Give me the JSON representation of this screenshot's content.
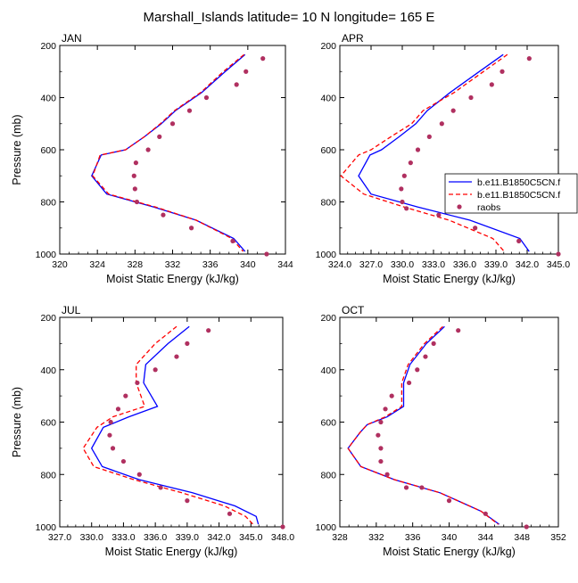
{
  "figure": {
    "title": "Marshall_Islands  latitude= 10 N longitude= 165 E"
  },
  "legend": {
    "entries": [
      {
        "label": "b.e11.B1850C5CN.f",
        "color": "#0000ff",
        "style": "solid"
      },
      {
        "label": "b.e11.B1850C5CN.f",
        "color": "#ff0000",
        "style": "dashed"
      },
      {
        "label": "raobs",
        "color": "#b03060",
        "style": "marker"
      }
    ]
  },
  "chart_data": [
    {
      "type": "line",
      "name": "JAN",
      "title": "JAN",
      "xlabel": "Moist Static Energy (kJ/kg)",
      "ylabel": "Pressure (mb)",
      "xlim": [
        320,
        344
      ],
      "ylim": [
        1000,
        200
      ],
      "y_reversed": true,
      "xticks": [
        "320",
        "324",
        "328",
        "332",
        "336",
        "340",
        "344"
      ],
      "yticks": [
        "200",
        "400",
        "600",
        "800",
        "1000"
      ],
      "series": [
        {
          "name": "b.e11.B1850C5CN.f (solid)",
          "color": "#0000ff",
          "dash": false,
          "x": [
            339.7,
            337.6,
            335.1,
            332.3,
            330.8,
            329.0,
            327.0,
            324.4,
            323.4,
            325.0,
            330.0,
            334.5,
            338.5,
            339.7
          ],
          "y": [
            235,
            300,
            380,
            450,
            500,
            550,
            600,
            620,
            700,
            770,
            820,
            870,
            940,
            990
          ]
        },
        {
          "name": "b.e11.B1850C5CN.f (dashed)",
          "color": "#ff0000",
          "dash": true,
          "x": [
            339.6,
            337.4,
            335.0,
            332.2,
            330.7,
            329.0,
            327.0,
            324.3,
            323.5,
            325.2,
            330.2,
            334.5,
            338.3,
            339.5
          ],
          "y": [
            235,
            300,
            380,
            450,
            500,
            550,
            600,
            620,
            700,
            770,
            820,
            870,
            940,
            990
          ]
        },
        {
          "name": "raobs",
          "color": "#b03060",
          "marker": true,
          "x": [
            341.6,
            339.8,
            338.8,
            335.6,
            333.8,
            332.0,
            330.6,
            329.4,
            328.1,
            327.9,
            328.0,
            328.2,
            331.0,
            334.0,
            338.4,
            342.0
          ],
          "y": [
            250,
            300,
            350,
            400,
            450,
            500,
            550,
            600,
            650,
            700,
            750,
            800,
            850,
            900,
            950,
            1000
          ]
        }
      ]
    },
    {
      "type": "line",
      "name": "APR",
      "title": "APR",
      "xlabel": "Moist Static Energy (kJ/kg)",
      "ylabel": "",
      "xlim": [
        324,
        345
      ],
      "ylim": [
        1000,
        200
      ],
      "y_reversed": true,
      "xticks": [
        "324.0",
        "327.0",
        "330.0",
        "333.0",
        "336.0",
        "339.0",
        "342.0",
        "345.0"
      ],
      "yticks": [
        "200",
        "400",
        "600",
        "800",
        "1000"
      ],
      "series": [
        {
          "name": "b.e11.B1850C5CN.f (solid)",
          "color": "#0000ff",
          "dash": false,
          "x": [
            339.7,
            337.4,
            334.6,
            332.4,
            331.3,
            329.7,
            328.0,
            326.9,
            325.8,
            327.0,
            331.5,
            336.5,
            341.3,
            342.2
          ],
          "y": [
            235,
            300,
            380,
            450,
            500,
            550,
            600,
            620,
            700,
            770,
            820,
            870,
            940,
            990
          ]
        },
        {
          "name": "b.e11.B1850C5CN.f (dashed)",
          "color": "#ff0000",
          "dash": true,
          "x": [
            340.1,
            337.8,
            335.0,
            332.0,
            330.9,
            328.9,
            327.0,
            325.8,
            324.1,
            326.3,
            330.2,
            334.5,
            338.7,
            339.8
          ],
          "y": [
            235,
            300,
            380,
            450,
            500,
            550,
            600,
            620,
            700,
            770,
            820,
            870,
            940,
            990
          ]
        },
        {
          "name": "raobs",
          "color": "#b03060",
          "marker": true,
          "x": [
            342.2,
            339.6,
            338.6,
            336.6,
            334.9,
            333.8,
            332.6,
            331.5,
            330.8,
            330.2,
            329.9,
            330.0,
            330.4,
            333.5,
            337.0,
            341.2,
            345.0
          ],
          "y": [
            250,
            300,
            350,
            400,
            450,
            500,
            550,
            600,
            650,
            700,
            750,
            800,
            825,
            850,
            900,
            950,
            1000
          ]
        }
      ]
    },
    {
      "type": "line",
      "name": "JUL",
      "title": "JUL",
      "xlabel": "Moist Static Energy (kJ/kg)",
      "ylabel": "Pressure (mb)",
      "xlim": [
        327,
        348
      ],
      "ylim": [
        1000,
        200
      ],
      "y_reversed": true,
      "xticks": [
        "327.0",
        "330.0",
        "333.0",
        "336.0",
        "339.0",
        "342.0",
        "345.0",
        "348.0"
      ],
      "yticks": [
        "200",
        "400",
        "600",
        "800",
        "1000"
      ],
      "series": [
        {
          "name": "b.e11.B1850C5CN.f (solid)",
          "color": "#0000ff",
          "dash": false,
          "x": [
            339.2,
            337.2,
            335.1,
            334.9,
            336.2,
            333.5,
            331.1,
            330.0,
            331.0,
            334.5,
            339.5,
            343.5,
            345.5,
            345.7
          ],
          "y": [
            235,
            300,
            380,
            450,
            540,
            580,
            620,
            700,
            770,
            820,
            870,
            920,
            960,
            990
          ]
        },
        {
          "name": "b.e11.B1850C5CN.f (dashed)",
          "color": "#ff0000",
          "dash": true,
          "x": [
            338.0,
            336.0,
            334.2,
            334.2,
            335.0,
            332.0,
            330.5,
            329.2,
            330.2,
            334.0,
            338.5,
            342.5,
            344.5,
            345.2
          ],
          "y": [
            235,
            300,
            380,
            450,
            540,
            580,
            620,
            700,
            770,
            820,
            870,
            920,
            960,
            990
          ]
        },
        {
          "name": "raobs",
          "color": "#b03060",
          "marker": true,
          "x": [
            341.0,
            339.0,
            338.0,
            336.0,
            334.3,
            333.2,
            332.5,
            331.8,
            331.7,
            332.0,
            333.0,
            334.5,
            336.5,
            339.0,
            343.0,
            348.0
          ],
          "y": [
            250,
            300,
            350,
            400,
            450,
            500,
            550,
            600,
            650,
            700,
            750,
            800,
            850,
            900,
            950,
            1000
          ]
        }
      ]
    },
    {
      "type": "line",
      "name": "OCT",
      "title": "OCT",
      "xlabel": "Moist Static Energy (kJ/kg)",
      "ylabel": "",
      "xlim": [
        328,
        352
      ],
      "ylim": [
        1000,
        200
      ],
      "y_reversed": true,
      "xticks": [
        "328",
        "332",
        "336",
        "340",
        "344",
        "348",
        "352"
      ],
      "yticks": [
        "200",
        "400",
        "600",
        "800",
        "1000"
      ],
      "series": [
        {
          "name": "b.e11.B1850C5CN.f (solid)",
          "color": "#0000ff",
          "dash": false,
          "x": [
            339.5,
            337.5,
            335.7,
            335.0,
            335.0,
            333.2,
            331.0,
            330.2,
            328.9,
            330.3,
            334.0,
            339.0,
            343.5,
            345.5
          ],
          "y": [
            235,
            300,
            380,
            450,
            540,
            580,
            610,
            640,
            700,
            770,
            820,
            870,
            940,
            990
          ]
        },
        {
          "name": "b.e11.B1850C5CN.f (dashed)",
          "color": "#ff0000",
          "dash": true,
          "x": [
            339.3,
            337.3,
            335.5,
            334.8,
            334.8,
            333.0,
            331.0,
            330.2,
            328.9,
            330.3,
            334.0,
            339.0,
            343.5,
            345.4
          ],
          "y": [
            235,
            300,
            380,
            450,
            540,
            580,
            610,
            640,
            700,
            770,
            820,
            870,
            940,
            990
          ]
        },
        {
          "name": "raobs",
          "color": "#b03060",
          "marker": true,
          "x": [
            341.0,
            338.3,
            337.4,
            336.5,
            335.6,
            333.7,
            333.0,
            332.5,
            332.2,
            332.5,
            332.5,
            333.2,
            335.3,
            337.0,
            340.0,
            344.0,
            348.5
          ],
          "y": [
            250,
            300,
            350,
            400,
            450,
            500,
            550,
            600,
            650,
            700,
            750,
            800,
            850,
            850,
            900,
            950,
            1000
          ]
        }
      ]
    }
  ]
}
